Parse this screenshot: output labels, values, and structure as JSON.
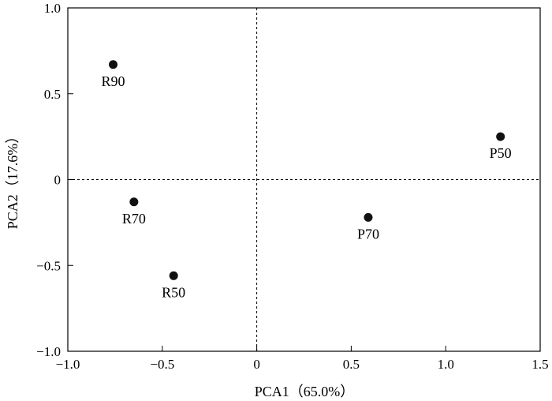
{
  "chart_data": {
    "type": "scatter",
    "title": "",
    "xlabel": "PCA1（65.0%）",
    "ylabel": "PCA2（17.6%）",
    "xlim": [
      -1.0,
      1.5
    ],
    "ylim": [
      -1.0,
      1.0
    ],
    "x_ticks": [
      -1.0,
      -0.5,
      0,
      0.5,
      1.0,
      1.5
    ],
    "x_tick_labels": [
      "−1.0",
      "−0.5",
      "0",
      "0.5",
      "1.0",
      "1.5"
    ],
    "y_ticks": [
      -1.0,
      -0.5,
      0,
      0.5,
      1.0
    ],
    "y_tick_labels": [
      "−1.0",
      "−0.5",
      "0",
      "0.5",
      "1.0"
    ],
    "reference_lines": {
      "x": 0,
      "y": 0,
      "style": "dashed"
    },
    "grid": false,
    "points": [
      {
        "label": "R90",
        "x": -0.76,
        "y": 0.67
      },
      {
        "label": "R70",
        "x": -0.65,
        "y": -0.13
      },
      {
        "label": "R50",
        "x": -0.44,
        "y": -0.56
      },
      {
        "label": "P70",
        "x": 0.59,
        "y": -0.22
      },
      {
        "label": "P50",
        "x": 1.29,
        "y": 0.25
      }
    ],
    "marker_color": "#111111"
  }
}
